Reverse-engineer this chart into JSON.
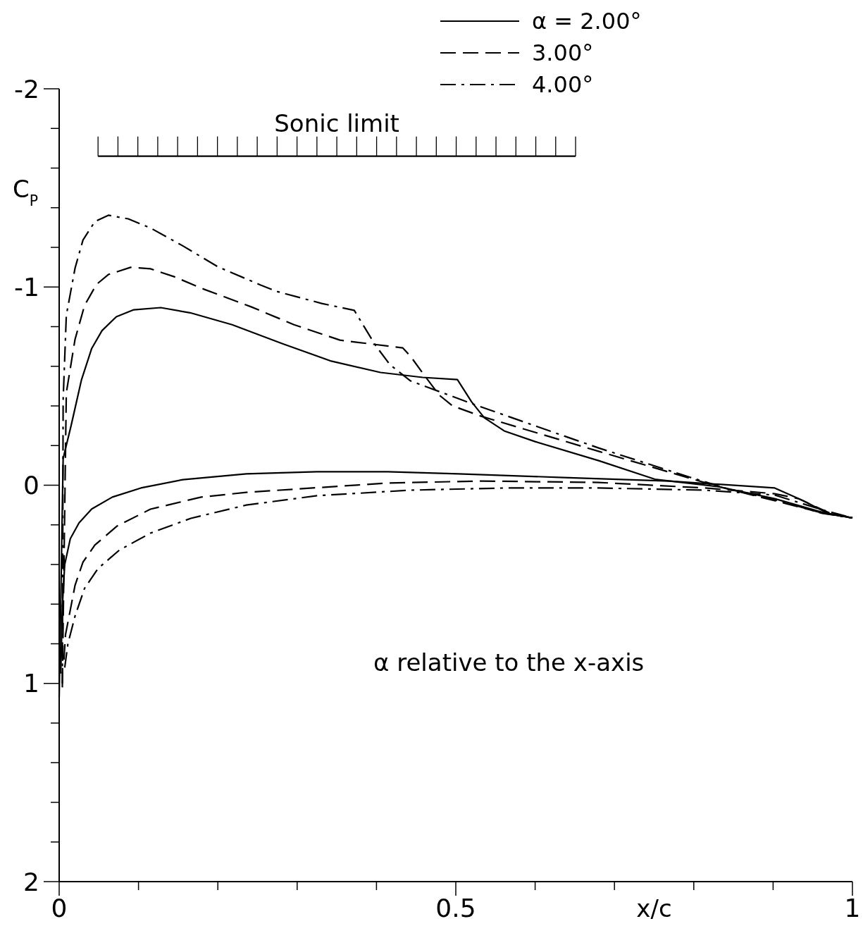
{
  "chart_data": {
    "type": "line",
    "xlabel": "x/c",
    "ylabel": "C$_{P}$",
    "xlim": [
      0,
      1
    ],
    "ylim": [
      2,
      -2
    ],
    "xticks": [
      0,
      {
        "value": 0.1,
        "label": null
      },
      {
        "value": 0.2,
        "label": null
      },
      {
        "value": 0.3,
        "label": null
      },
      {
        "value": 0.4,
        "label": null
      },
      0.5,
      {
        "value": 0.6,
        "label": null
      },
      {
        "value": 0.7,
        "label": null
      },
      {
        "value": 0.8,
        "label": null
      },
      {
        "value": 0.9,
        "label": null
      },
      1
    ],
    "yticks": [
      -2,
      {
        "value": -1.8,
        "label": null
      },
      {
        "value": -1.6,
        "label": null
      },
      {
        "value": -1.4,
        "label": null
      },
      {
        "value": -1.2,
        "label": null
      },
      -1,
      {
        "value": -0.8,
        "label": null
      },
      {
        "value": -0.6,
        "label": null
      },
      {
        "value": -0.4,
        "label": null
      },
      {
        "value": -0.2,
        "label": null
      },
      0,
      {
        "value": 0.2,
        "label": null
      },
      {
        "value": 0.4,
        "label": null
      },
      {
        "value": 0.6,
        "label": null
      },
      {
        "value": 0.8,
        "label": null
      },
      1,
      {
        "value": 1.2,
        "label": null
      },
      {
        "value": 1.4,
        "label": null
      },
      {
        "value": 1.6,
        "label": null
      },
      {
        "value": 1.8,
        "label": null
      },
      2
    ],
    "legend": "top right",
    "marker": "none",
    "annotations": [
      "α  relative to the x-axis"
    ],
    "series": [
      {
        "name": "α = 2.00°",
        "color": "#000000",
        "line_style": "solid",
        "x": [
          0,
          0.005,
          0.015,
          0.028,
          0.041,
          0.054,
          0.072,
          0.094,
          0.128,
          0.165,
          0.218,
          0.281,
          0.343,
          0.405,
          0.458,
          0.502,
          0.52,
          0.536,
          0.561,
          0.6,
          0.68,
          0.751,
          0.831,
          0.902,
          0.964,
          1
        ],
        "values": [
          1.07,
          -0.135,
          -0.3,
          -0.53,
          -0.69,
          -0.78,
          -0.85,
          -0.885,
          -0.896,
          -0.87,
          -0.81,
          -0.715,
          -0.626,
          -0.569,
          -0.544,
          -0.533,
          -0.42,
          -0.34,
          -0.274,
          -0.22,
          -0.124,
          -0.03,
          0.007,
          0.068,
          0.139,
          0.165
        ]
      },
      {
        "color": "#000000",
        "line_style": "solid",
        "x": [
          0.002,
          0.004,
          0.007,
          0.014,
          0.025,
          0.041,
          0.067,
          0.103,
          0.156,
          0.236,
          0.325,
          0.414,
          0.503,
          0.636,
          0.769,
          0.822,
          0.902,
          0.938,
          0.969,
          1
        ],
        "values": [
          0.95,
          0.61,
          0.4,
          0.27,
          0.19,
          0.12,
          0.06,
          0.014,
          -0.028,
          -0.057,
          -0.068,
          -0.068,
          -0.057,
          -0.039,
          -0.021,
          -0.007,
          0.014,
          0.078,
          0.142,
          0.165
        ]
      },
      {
        "name": "3.00°",
        "color": "#000000",
        "line_style": "dashed",
        "x": [
          0.004,
          0.009,
          0.02,
          0.032,
          0.047,
          0.062,
          0.09,
          0.115,
          0.145,
          0.183,
          0.242,
          0.296,
          0.354,
          0.396,
          0.433,
          0.443,
          0.461,
          0.479,
          0.496,
          0.532,
          0.68,
          0.831,
          0.902,
          0.964,
          1
        ],
        "values": [
          1,
          -0.466,
          -0.736,
          -0.907,
          -1.013,
          -1.063,
          -1.099,
          -1.092,
          -1.052,
          -0.988,
          -0.9,
          -0.81,
          -0.732,
          -0.711,
          -0.693,
          -0.65,
          -0.551,
          -0.455,
          -0.4,
          -0.348,
          -0.171,
          0.007,
          0.078,
          0.142,
          0.165
        ]
      },
      {
        "color": "#000000",
        "line_style": "dashed",
        "x": [
          0.006,
          0.008,
          0.02,
          0.03,
          0.045,
          0.073,
          0.115,
          0.179,
          0.236,
          0.414,
          0.532,
          0.68,
          0.814,
          0.902,
          0.932,
          0.976,
          1
        ],
        "values": [
          0.88,
          0.754,
          0.505,
          0.388,
          0.302,
          0.206,
          0.121,
          0.06,
          0.036,
          -0.011,
          -0.021,
          -0.014,
          0.014,
          0.043,
          0.068,
          0.149,
          0.165
        ]
      },
      {
        "name": "4.00°",
        "color": "#000000",
        "line_style": "dashdot",
        "x": [
          0.004,
          0.005,
          0.009,
          0.02,
          0.03,
          0.045,
          0.062,
          0.087,
          0.115,
          0.157,
          0.2,
          0.254,
          0.274,
          0.331,
          0.372,
          0.399,
          0.417,
          0.443,
          0.52,
          0.636,
          0.68,
          0.796,
          0.843,
          0.917,
          0.962,
          1
        ],
        "values": [
          1.02,
          -0.43,
          -0.857,
          -1.095,
          -1.237,
          -1.33,
          -1.362,
          -1.344,
          -1.298,
          -1.205,
          -1.102,
          -1.01,
          -0.978,
          -0.917,
          -0.882,
          -0.704,
          -0.608,
          -0.526,
          -0.412,
          -0.249,
          -0.188,
          -0.039,
          0.018,
          0.089,
          0.142,
          0.165
        ]
      },
      {
        "color": "#000000",
        "line_style": "dashdot",
        "x": [
          0.007,
          0.011,
          0.02,
          0.032,
          0.049,
          0.076,
          0.115,
          0.166,
          0.236,
          0.325,
          0.443,
          0.562,
          0.68,
          0.814,
          0.902,
          0.962,
          1
        ],
        "values": [
          0.92,
          0.8,
          0.66,
          0.52,
          0.42,
          0.327,
          0.242,
          0.167,
          0.1,
          0.053,
          0.025,
          0.014,
          0.014,
          0.025,
          0.05,
          0.124,
          0.165
        ]
      },
      {
        "name": "Sonic limit",
        "type": "line",
        "color": "#000000",
        "line_style": "solid",
        "x": [
          0.049,
          0.651
        ],
        "values": [
          -1.66,
          -1.66
        ]
      }
    ]
  }
}
